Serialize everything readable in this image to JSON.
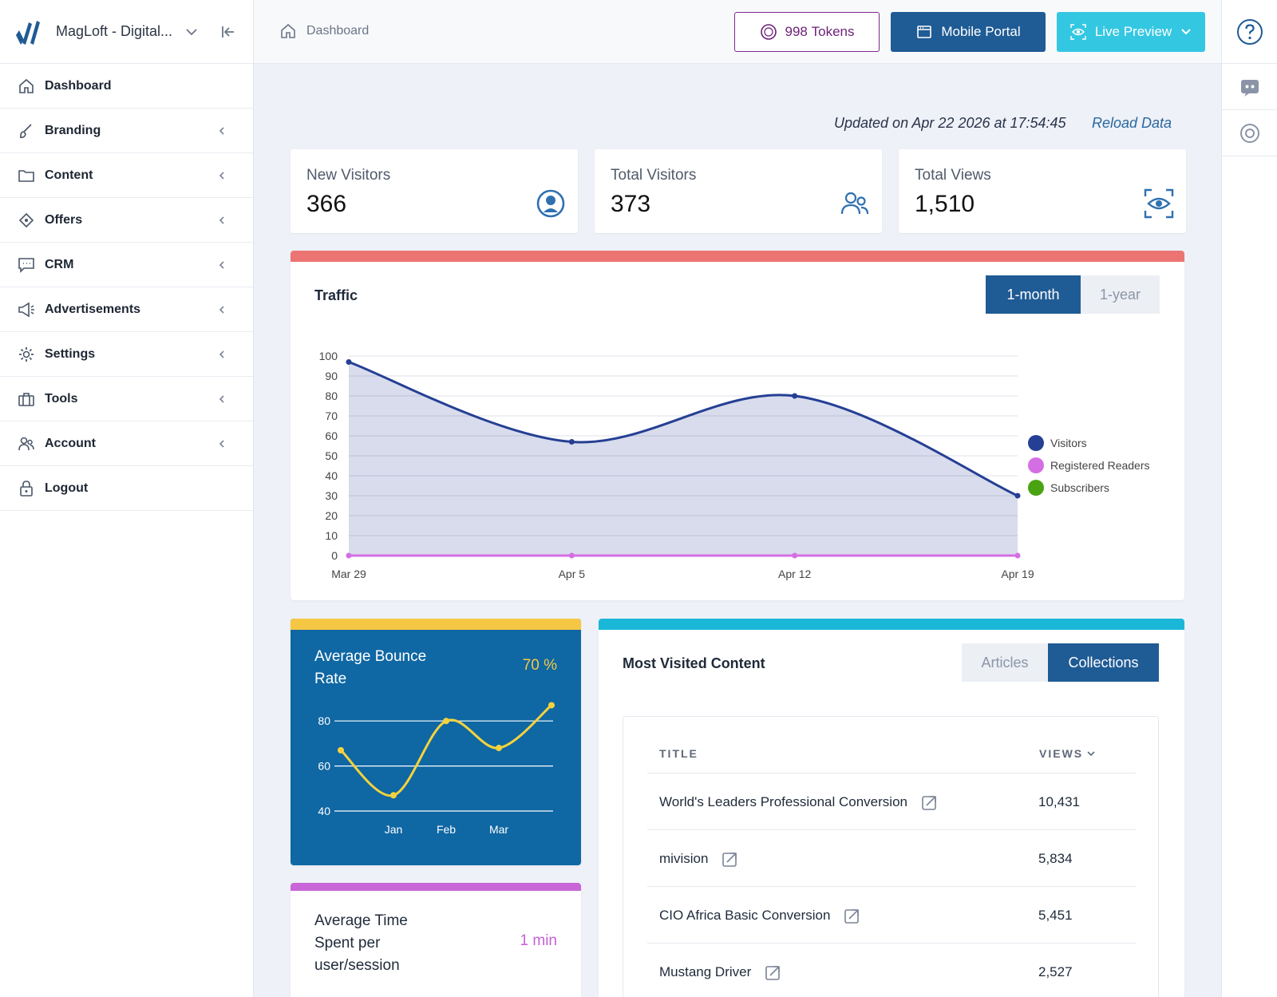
{
  "app": {
    "name": "MagLoft - Digital...",
    "colors": {
      "primary": "#1f5b95",
      "accent": "#34c7e2",
      "tokens": "#7d2a8c"
    }
  },
  "sidebar": {
    "items": [
      {
        "label": "Dashboard",
        "icon": "home-icon",
        "has_submenu": false
      },
      {
        "label": "Branding",
        "icon": "brush-icon",
        "has_submenu": true
      },
      {
        "label": "Content",
        "icon": "folder-icon",
        "has_submenu": true
      },
      {
        "label": "Offers",
        "icon": "tag-icon",
        "has_submenu": true
      },
      {
        "label": "CRM",
        "icon": "chat-icon",
        "has_submenu": true
      },
      {
        "label": "Advertisements",
        "icon": "megaphone-icon",
        "has_submenu": true
      },
      {
        "label": "Settings",
        "icon": "gear-icon",
        "has_submenu": true
      },
      {
        "label": "Tools",
        "icon": "toolbox-icon",
        "has_submenu": true
      },
      {
        "label": "Account",
        "icon": "users-icon",
        "has_submenu": true
      },
      {
        "label": "Logout",
        "icon": "lock-icon",
        "has_submenu": false
      }
    ]
  },
  "topbar": {
    "breadcrumb": "Dashboard",
    "tokens_count": "998",
    "tokens_label": "Tokens",
    "mobile_portal": "Mobile Portal",
    "live_preview": "Live Preview"
  },
  "status": {
    "updated": "Updated on Apr 22 2026 at 17:54:45",
    "reload": "Reload Data"
  },
  "stats": [
    {
      "title": "New Visitors",
      "value": "366",
      "icon": "user-circle-icon"
    },
    {
      "title": "Total Visitors",
      "value": "373",
      "icon": "users-icon"
    },
    {
      "title": "Total Views",
      "value": "1,510",
      "icon": "eye-scan-icon"
    }
  ],
  "traffic": {
    "title": "Traffic",
    "ranges": [
      "1-month",
      "1-year"
    ],
    "active_range": "1-month",
    "bar_color": "#ec7573"
  },
  "bounce": {
    "title": "Average Bounce Rate",
    "value": "70 %"
  },
  "avg_time": {
    "title": "Average Time Spent per user/session",
    "value": "1 min"
  },
  "most_visited": {
    "title": "Most Visited Content",
    "tabs": [
      "Articles",
      "Collections"
    ],
    "active_tab": "Collections",
    "columns": [
      "TITLE",
      "VIEWS"
    ],
    "rows": [
      {
        "title": "World's Leaders Professional Conversion",
        "views": "10,431"
      },
      {
        "title": "mivision",
        "views": "5,834"
      },
      {
        "title": "CIO Africa Basic Conversion",
        "views": "5,451"
      },
      {
        "title": "Mustang Driver",
        "views": "2,527"
      }
    ]
  },
  "chart_data": [
    {
      "type": "area",
      "x": [
        "Mar 29",
        "Apr 5",
        "Apr 12",
        "Apr 19"
      ],
      "series": [
        {
          "name": "Visitors",
          "values": [
            97,
            57,
            80,
            30
          ],
          "color": "#253f94"
        },
        {
          "name": "Registered Readers",
          "values": [
            0,
            0,
            0,
            0
          ],
          "color": "#d46ee3"
        },
        {
          "name": "Subscribers",
          "values": [
            0,
            0,
            0,
            0
          ],
          "color": "#4aa312"
        }
      ],
      "yticks": [
        0,
        10,
        20,
        30,
        40,
        50,
        60,
        70,
        80,
        90,
        100
      ],
      "ylim": [
        0,
        100
      ],
      "grid": true,
      "legend": "right"
    },
    {
      "type": "line",
      "x": [
        "",
        "Jan",
        "Feb",
        "Mar",
        ""
      ],
      "series": [
        {
          "values": [
            67,
            47,
            80,
            68,
            87
          ],
          "color": "#f4d23e"
        }
      ],
      "yticks": [
        40,
        60,
        80
      ],
      "ylim": [
        40,
        90
      ],
      "grid": true
    }
  ]
}
